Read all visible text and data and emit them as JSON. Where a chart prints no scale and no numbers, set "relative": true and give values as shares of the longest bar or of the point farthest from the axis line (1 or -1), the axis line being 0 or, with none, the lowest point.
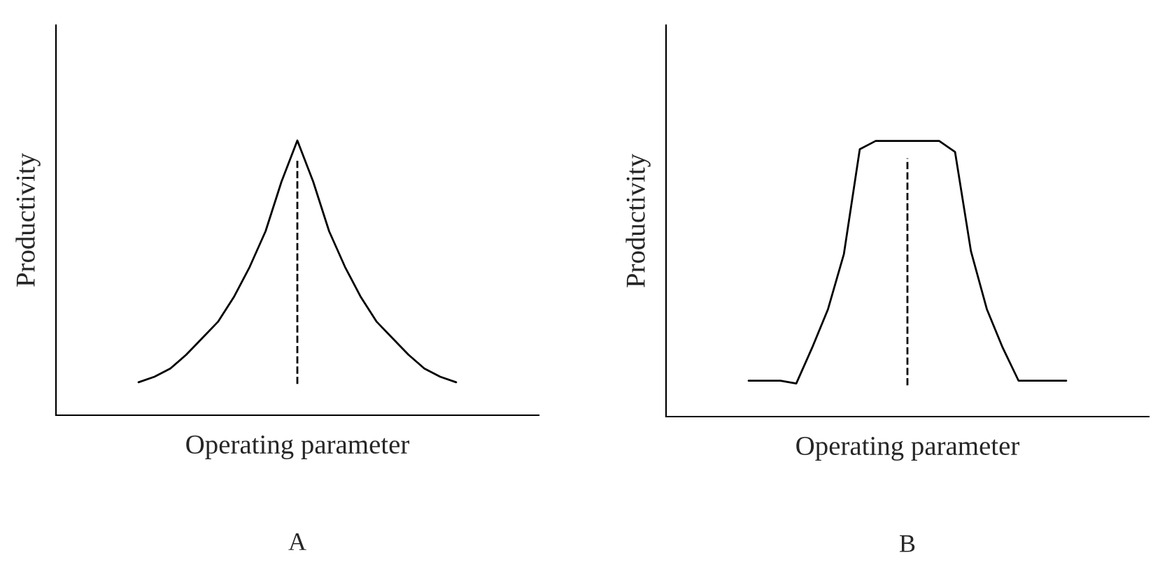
{
  "chart_data": [
    {
      "type": "line",
      "relative": true,
      "xlabel": "Operating parameter",
      "ylabel": "Productivity",
      "annotations": [
        "A"
      ],
      "tick_labels": false,
      "grid": false,
      "legend": false,
      "categories": [
        null,
        null,
        null,
        null,
        null,
        null,
        null,
        null,
        null,
        null,
        null,
        null,
        null,
        null,
        null,
        null,
        null,
        null,
        null,
        null,
        null
      ],
      "series": [
        {
          "color": "#000000",
          "line_style": "solid",
          "values": [
            0.12,
            0.14,
            0.17,
            0.22,
            0.28,
            0.34,
            0.43,
            0.54,
            0.67,
            0.85,
            1.0,
            0.85,
            0.67,
            0.54,
            0.43,
            0.34,
            0.28,
            0.22,
            0.17,
            0.14,
            0.12
          ]
        }
      ]
    },
    {
      "type": "line",
      "relative": true,
      "xlabel": "Operating parameter",
      "ylabel": "Productivity",
      "annotations": [
        "B"
      ],
      "tick_labels": false,
      "grid": false,
      "legend": false,
      "categories": [
        null,
        null,
        null,
        null,
        null,
        null,
        null,
        null,
        null,
        null,
        null,
        null,
        null,
        null,
        null,
        null,
        null,
        null,
        null,
        null,
        null
      ],
      "series": [
        {
          "color": "#000000",
          "line_style": "solid",
          "values": [
            0.13,
            0.13,
            0.13,
            0.12,
            0.25,
            0.39,
            0.59,
            0.97,
            1.0,
            1.0,
            1.0,
            1.0,
            1.0,
            0.96,
            0.6,
            0.39,
            0.25,
            0.13,
            0.13,
            0.13,
            0.13
          ]
        }
      ]
    }
  ]
}
